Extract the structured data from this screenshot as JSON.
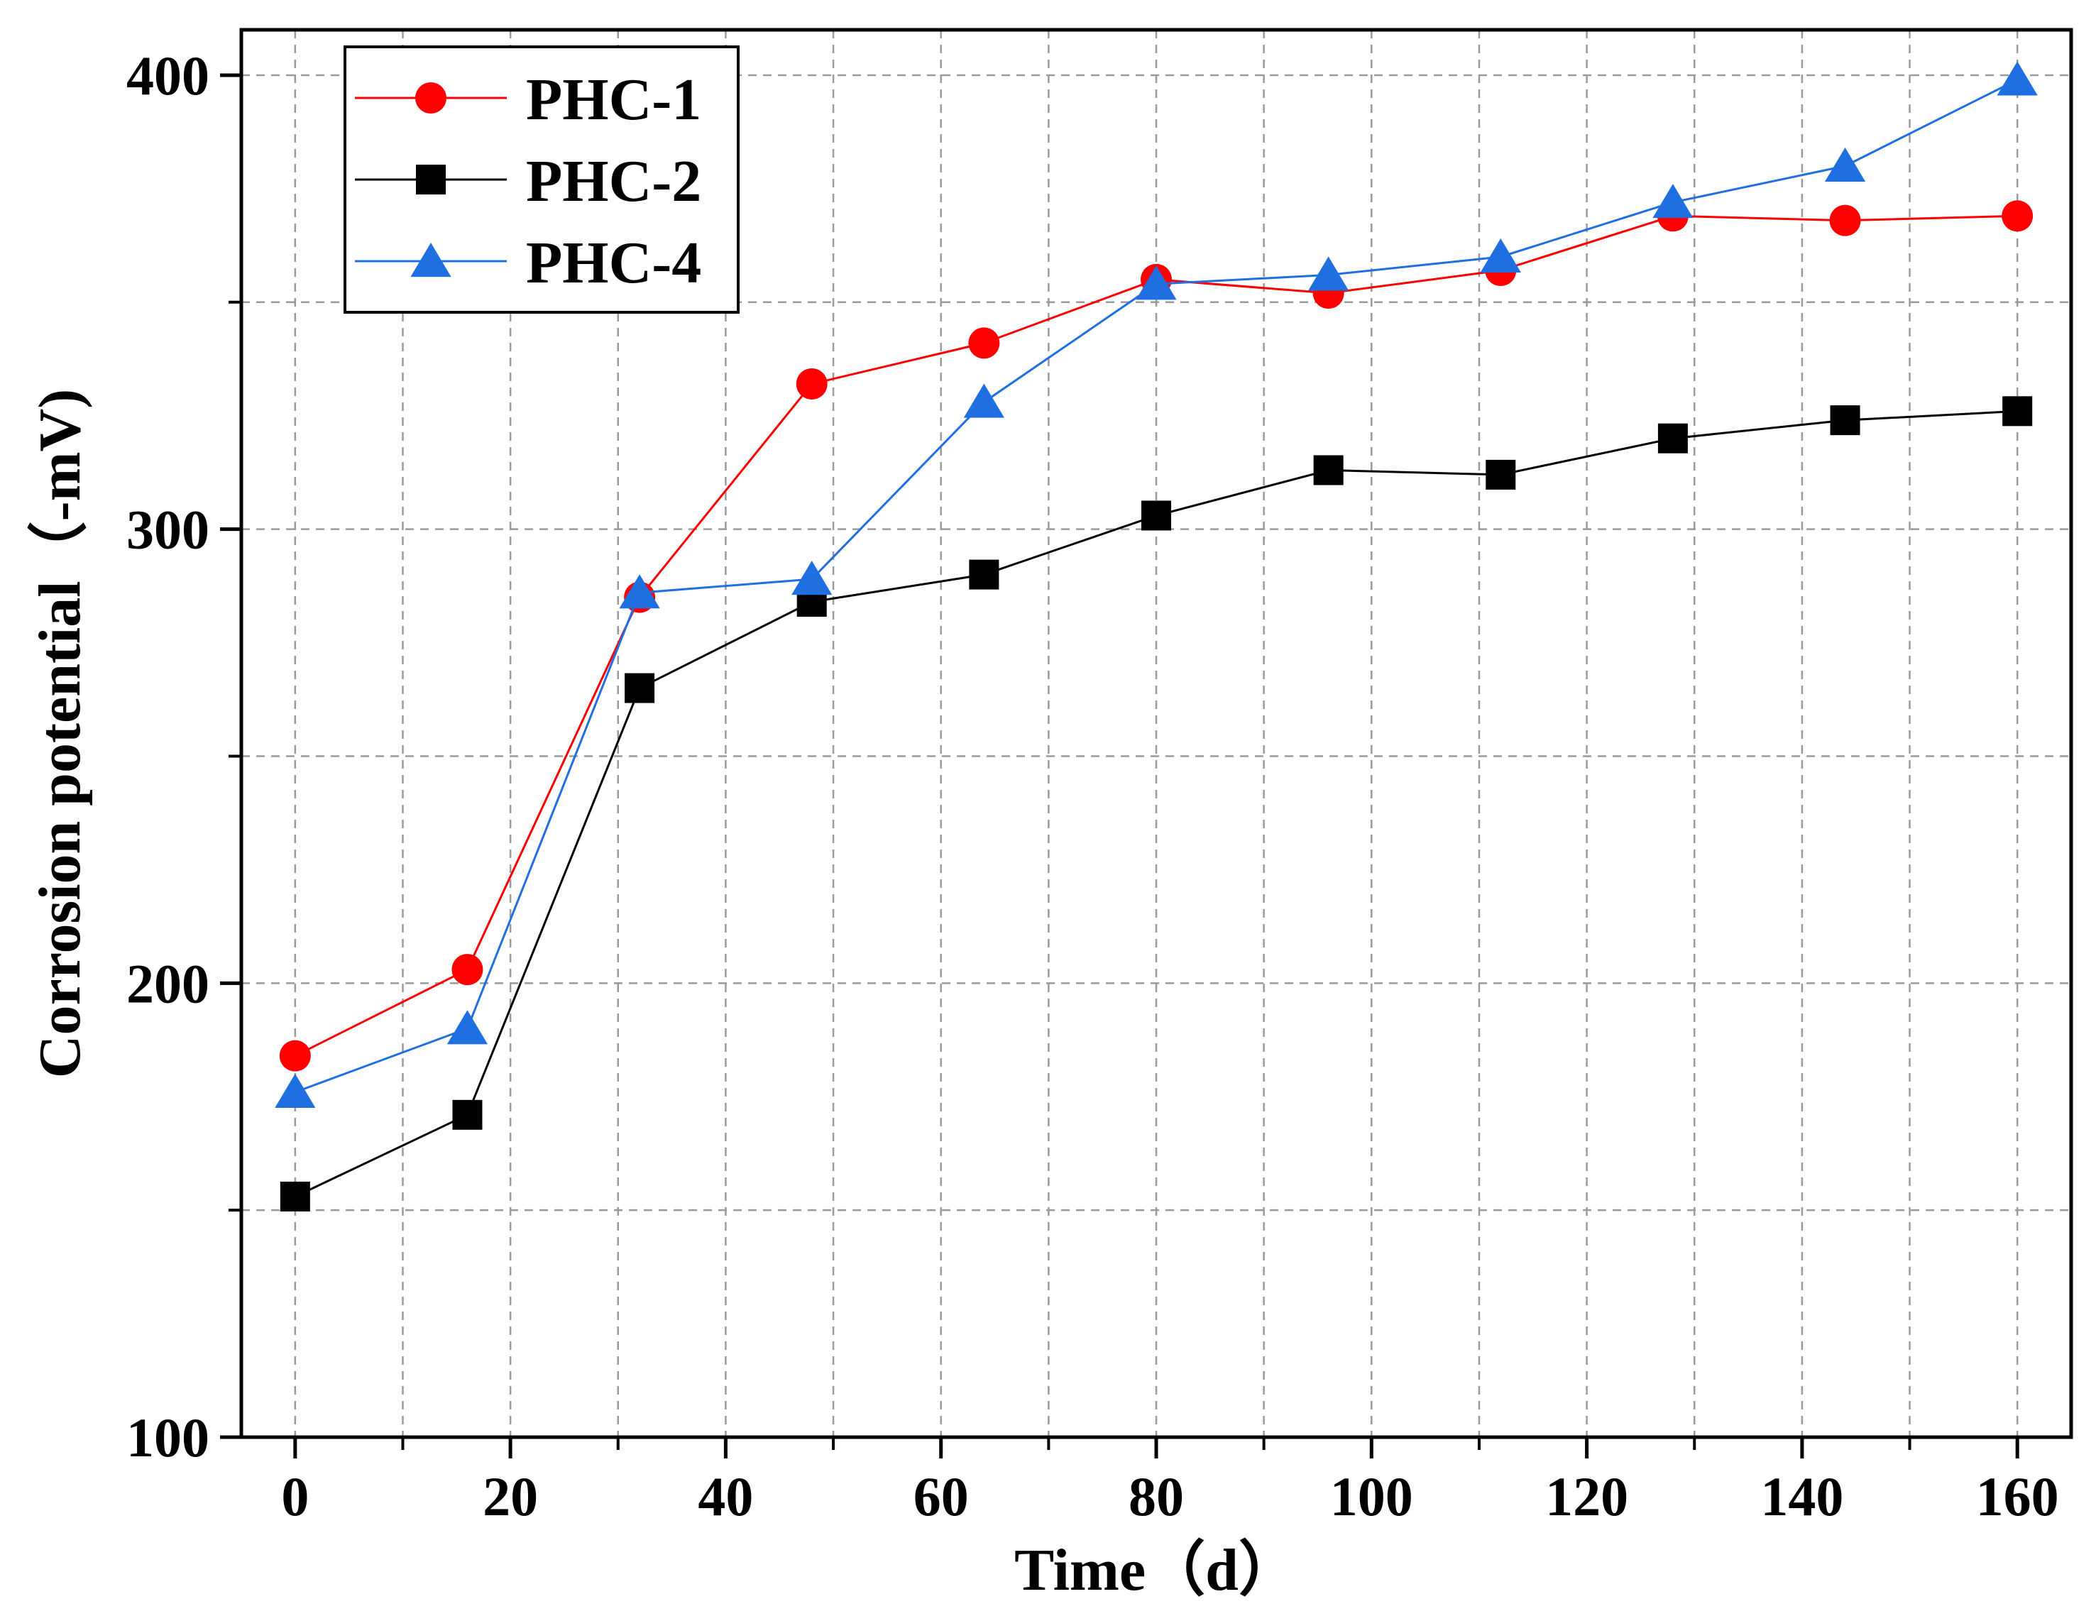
{
  "chart_data": {
    "type": "line",
    "xlabel": "Time（d）",
    "ylabel": "Corrosion potential（-mV)",
    "xlim": [
      -5,
      165
    ],
    "ylim": [
      100,
      410
    ],
    "x_ticks": [
      0,
      20,
      40,
      60,
      80,
      100,
      120,
      140,
      160
    ],
    "y_ticks": [
      100,
      200,
      300,
      400
    ],
    "grid": true,
    "legend_position": "top-left",
    "x": [
      0,
      16,
      32,
      48,
      64,
      80,
      96,
      112,
      128,
      144,
      160
    ],
    "series": [
      {
        "name": "PHC-1",
        "color": "#ff0000",
        "marker": "circle",
        "values": [
          184,
          203,
          285,
          332,
          341,
          355,
          352,
          357,
          369,
          368,
          369
        ]
      },
      {
        "name": "PHC-2",
        "color": "#000000",
        "marker": "square",
        "values": [
          153,
          171,
          265,
          284,
          290,
          303,
          313,
          312,
          320,
          324,
          326
        ]
      },
      {
        "name": "PHC-4",
        "color": "#1f6fe0",
        "marker": "triangle",
        "values": [
          176,
          190,
          286,
          289,
          328,
          354,
          356,
          360,
          372,
          380,
          399
        ]
      }
    ]
  }
}
